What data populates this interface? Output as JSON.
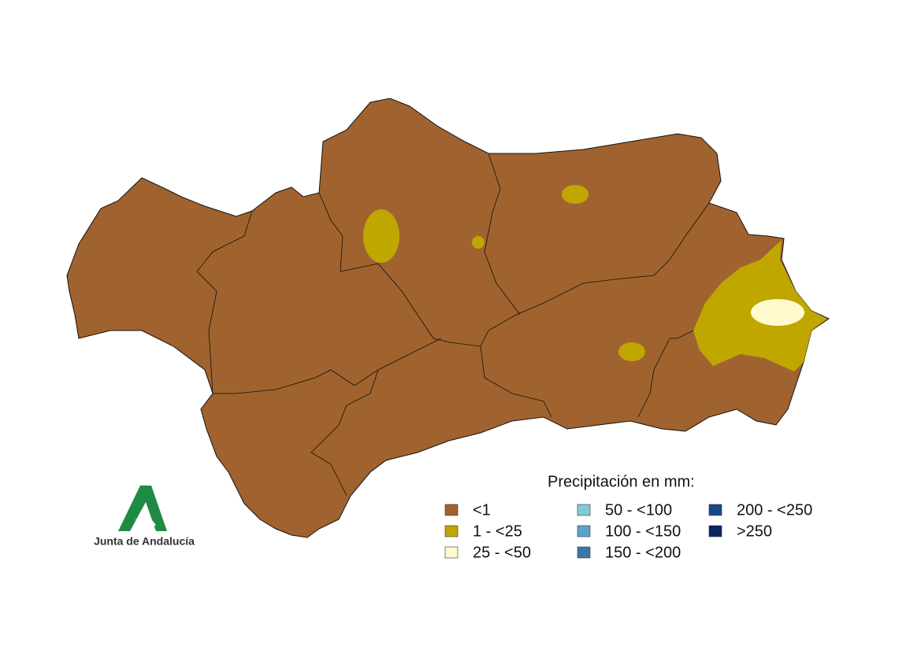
{
  "map": {
    "fill_color": "#a0632f",
    "border_color": "#111111"
  },
  "legend": {
    "title": "Precipitación en mm:",
    "items": [
      {
        "label": "<1",
        "color": "#a0632f"
      },
      {
        "label": "1 - <25",
        "color": "#bfa700"
      },
      {
        "label": "25 - <50",
        "color": "#fffacd"
      },
      {
        "label": "50 - <100",
        "color": "#80cbd7"
      },
      {
        "label": "100 - <150",
        "color": "#5aa3ca"
      },
      {
        "label": "150 - <200",
        "color": "#3b78aa"
      },
      {
        "label": "200 - <250",
        "color": "#15498a"
      },
      {
        "label": ">250",
        "color": "#0a2562"
      }
    ]
  },
  "logo": {
    "text": "Junta de Andalucía"
  }
}
